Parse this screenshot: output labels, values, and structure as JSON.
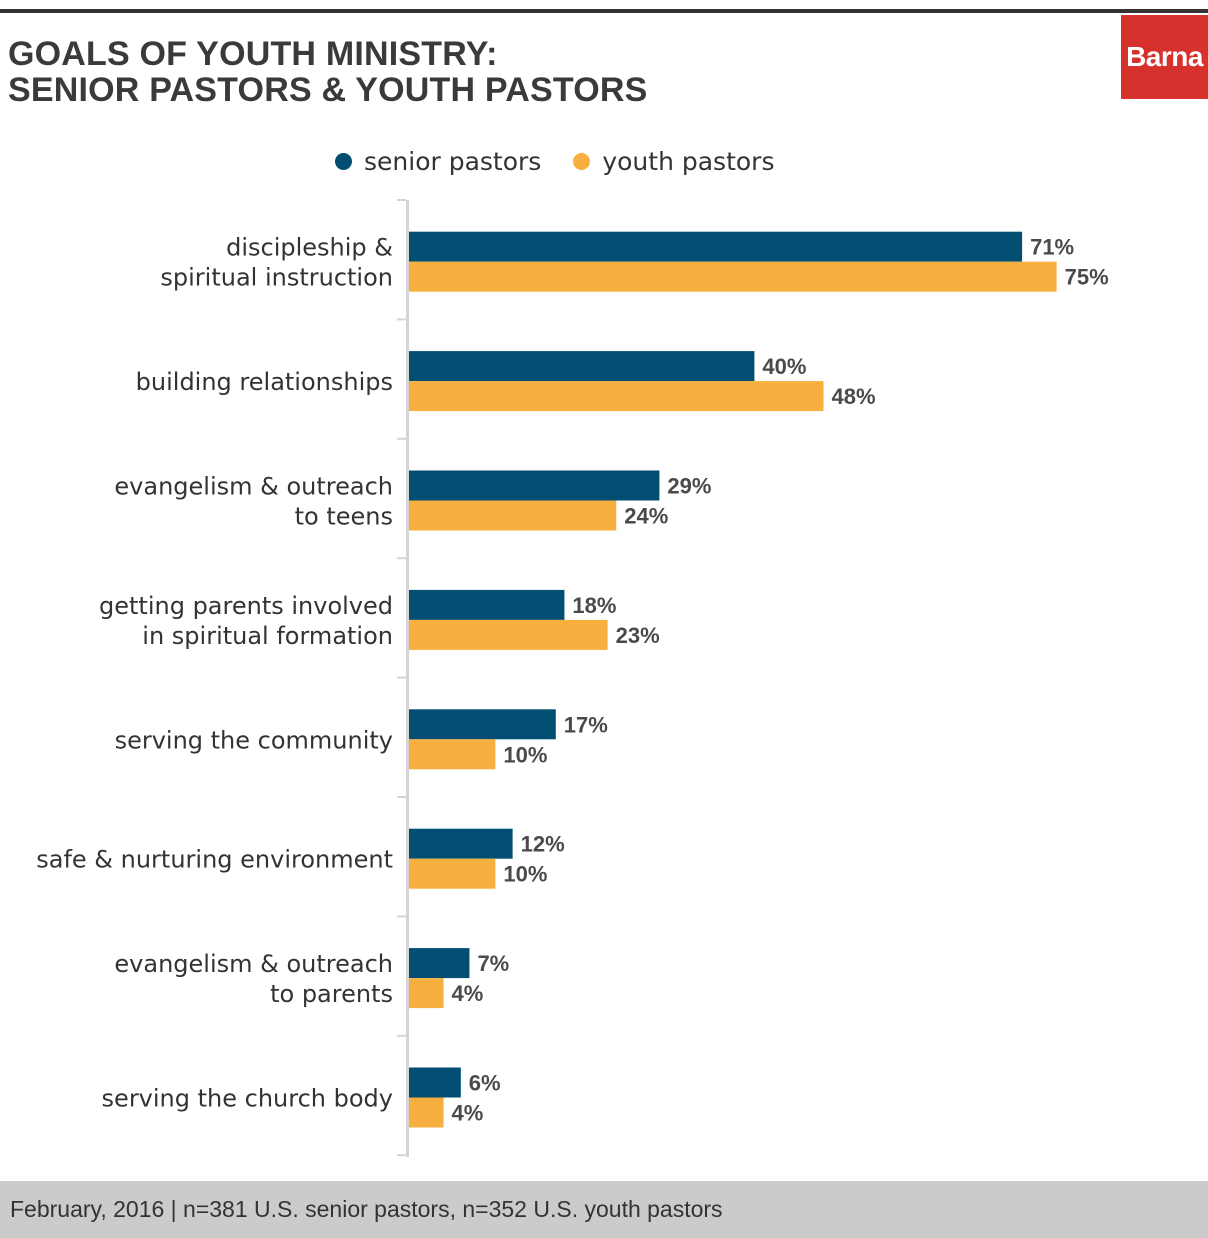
{
  "header": {
    "title_line1": "GOALS OF YOUTH MINISTRY:",
    "title_line2": "SENIOR PASTORS & YOUTH PASTORS",
    "logo_text": "Barna"
  },
  "legend": {
    "senior": "senior pastors",
    "youth": "youth pastors"
  },
  "colors": {
    "senior": "#024e72",
    "youth": "#f7b040",
    "logo_bg": "#d7312e"
  },
  "chart_data": {
    "type": "bar",
    "orientation": "horizontal",
    "title": "GOALS OF YOUTH MINISTRY: SENIOR PASTORS & YOUTH PASTORS",
    "categories": [
      [
        "discipleship &",
        "spiritual instruction"
      ],
      [
        "building relationships"
      ],
      [
        "evangelism & outreach",
        "to teens"
      ],
      [
        "getting parents involved",
        "in spiritual formation"
      ],
      [
        "serving the community"
      ],
      [
        "safe & nurturing environment"
      ],
      [
        "evangelism & outreach",
        "to parents"
      ],
      [
        "serving the church body"
      ]
    ],
    "series": [
      {
        "name": "senior pastors",
        "values": [
          71,
          40,
          29,
          18,
          17,
          12,
          7,
          6
        ]
      },
      {
        "name": "youth pastors",
        "values": [
          75,
          48,
          24,
          23,
          10,
          10,
          4,
          4
        ]
      }
    ],
    "value_suffix": "%",
    "legend_position": "top",
    "grid": false
  },
  "footer": {
    "note": "February, 2016 | n=381 U.S. senior pastors, n=352 U.S. youth pastors"
  }
}
